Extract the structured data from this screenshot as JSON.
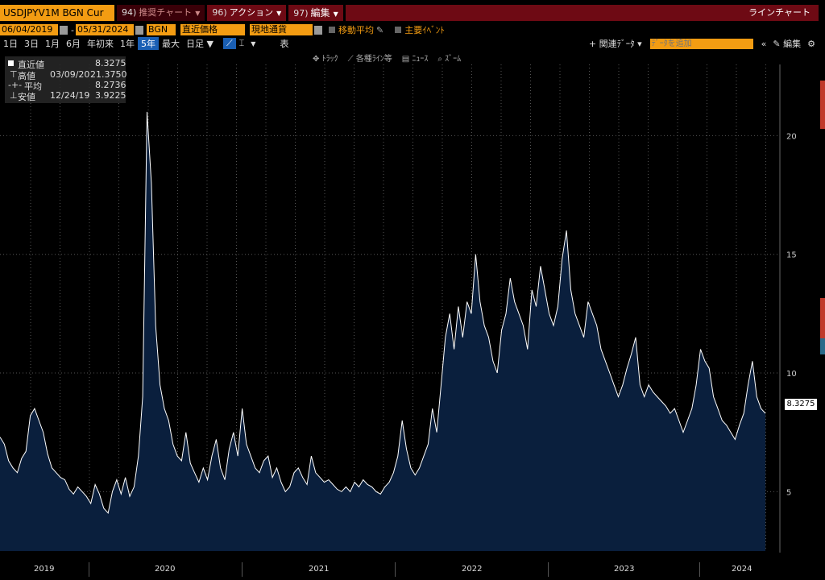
{
  "header": {
    "ticker": "USDJPYV1M BGN Cur",
    "menus": [
      {
        "num": "94)",
        "label": "推奨チャート"
      },
      {
        "num": "96)",
        "label": "アクション"
      },
      {
        "num": "97)",
        "label": "編集"
      }
    ],
    "chart_type": "ラインチャート"
  },
  "controls": {
    "start_date": "06/04/2019",
    "end_date": "05/31/2024",
    "source": "BGN",
    "price_type": "直近価格",
    "currency": "現地通貨",
    "moving_average": "移動平均",
    "events": "主要ｲﾍﾞﾝﾄ"
  },
  "periods": [
    "1日",
    "3日",
    "1月",
    "6月",
    "年初来",
    "1年",
    "5年",
    "最大"
  ],
  "period_active": "5年",
  "frequency": "日足",
  "table_label": "表",
  "related": "関連ﾃﾞｰﾀ",
  "add_data_placeholder": "ﾃﾞｰﾀを追加",
  "edit_label": "編集",
  "tools": [
    "ﾄﾗｯｸ",
    "各種ﾗｲﾝ等",
    "ﾆｭｰｽ",
    "ｽﾞｰﾑ"
  ],
  "legend": {
    "last": {
      "label": "直近値",
      "value": "8.3275"
    },
    "high": {
      "label": "高値",
      "date": "03/09/20",
      "value": "21.3750"
    },
    "avg": {
      "label": "平均",
      "value": "8.2736"
    },
    "low": {
      "label": "安値",
      "date": "12/24/19",
      "value": "3.9225"
    }
  },
  "last_price_label": "8.3275",
  "colors": {
    "line": "#ffffff",
    "fill": "#0a1f3d",
    "accent": "#f39c12",
    "menu": "#6e0a14"
  },
  "chart_data": {
    "type": "area",
    "ylim": [
      2.5,
      23
    ],
    "yticks": [
      5,
      10,
      15,
      20
    ],
    "xlabels": [
      "2019",
      "2020",
      "2021",
      "2022",
      "2023",
      "2024"
    ],
    "x_start": "2019-06-04",
    "x_end": "2024-05-31",
    "series": [
      {
        "values": [
          7.3,
          7.0,
          6.3,
          6.0,
          5.8,
          6.4,
          6.7,
          8.2,
          8.5,
          8.0,
          7.5,
          6.6,
          6.0,
          5.8,
          5.6,
          5.5,
          5.1,
          4.9,
          5.2,
          5.0,
          4.8,
          4.5,
          5.3,
          4.9,
          4.3,
          4.1,
          5.0,
          5.5,
          4.9,
          5.6,
          4.8,
          5.2,
          6.5,
          9.0,
          21.0,
          18.0,
          12.0,
          9.5,
          8.5,
          8.0,
          7.0,
          6.5,
          6.3,
          7.5,
          6.2,
          5.8,
          5.4,
          6.0,
          5.5,
          6.5,
          7.2,
          6.0,
          5.5,
          6.8,
          7.5,
          6.5,
          8.5,
          7.0,
          6.5,
          6.0,
          5.8,
          6.3,
          6.5,
          5.6,
          6.0,
          5.4,
          5.0,
          5.2,
          5.8,
          6.0,
          5.6,
          5.3,
          6.5,
          5.8,
          5.6,
          5.4,
          5.5,
          5.3,
          5.1,
          5.0,
          5.2,
          5.0,
          5.4,
          5.2,
          5.5,
          5.3,
          5.2,
          5.0,
          4.9,
          5.2,
          5.4,
          5.8,
          6.5,
          8.0,
          6.8,
          6.0,
          5.7,
          6.0,
          6.5,
          7.0,
          8.5,
          7.5,
          9.5,
          11.5,
          12.5,
          11.0,
          12.8,
          11.5,
          13.0,
          12.5,
          15.0,
          13.0,
          12.0,
          11.5,
          10.5,
          10.0,
          11.8,
          12.5,
          14.0,
          13.0,
          12.5,
          12.0,
          11.0,
          13.5,
          12.8,
          14.5,
          13.5,
          12.5,
          12.0,
          12.8,
          14.8,
          16.0,
          13.5,
          12.5,
          12.0,
          11.5,
          13.0,
          12.5,
          12.0,
          11.0,
          10.5,
          10.0,
          9.5,
          9.0,
          9.5,
          10.2,
          10.8,
          11.5,
          9.5,
          9.0,
          9.5,
          9.2,
          9.0,
          8.8,
          8.6,
          8.3,
          8.5,
          8.0,
          7.5,
          8.0,
          8.5,
          9.5,
          11.0,
          10.5,
          10.2,
          9.0,
          8.5,
          8.0,
          7.8,
          7.5,
          7.2,
          7.8,
          8.3,
          9.5,
          10.5,
          9.0,
          8.5,
          8.3
        ]
      }
    ]
  }
}
